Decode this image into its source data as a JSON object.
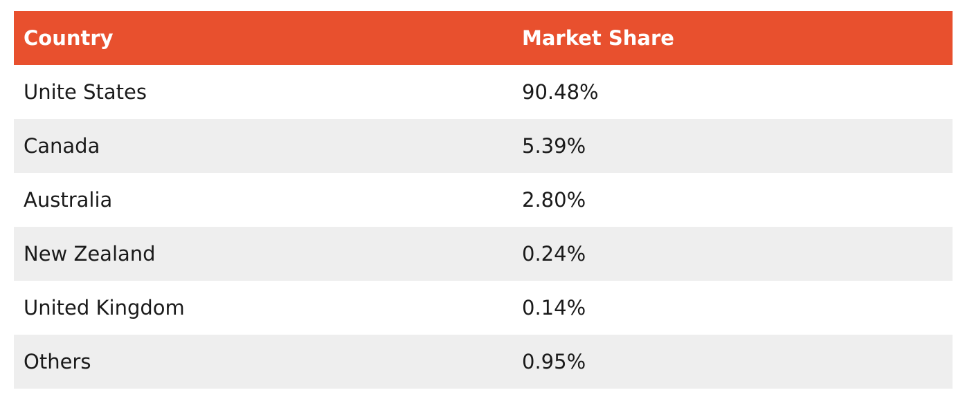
{
  "colors": {
    "header_bg": "#E8502E",
    "header_text": "#FFFFFF",
    "alt_row_bg": "#EEEEEE",
    "row_bg": "#FFFFFF"
  },
  "table": {
    "headers": {
      "country": "Country",
      "market_share": "Market Share"
    },
    "rows": [
      {
        "country": "Unite States",
        "market_share": "90.48%"
      },
      {
        "country": "Canada",
        "market_share": "5.39%"
      },
      {
        "country": "Australia",
        "market_share": "2.80%"
      },
      {
        "country": "New Zealand",
        "market_share": "0.24%"
      },
      {
        "country": "United Kingdom",
        "market_share": "0.14%"
      },
      {
        "country": "Others",
        "market_share": "0.95%"
      }
    ]
  }
}
